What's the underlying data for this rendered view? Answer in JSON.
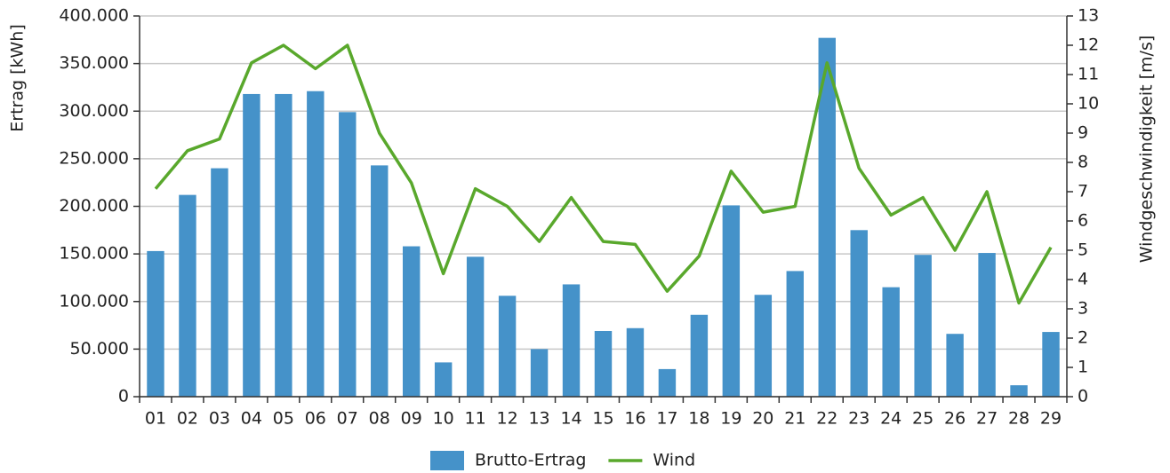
{
  "chart_data": {
    "type": "bar_line",
    "y_label": "Ertrag [kWh]",
    "y2_label": "Windgeschwindigkeit [m/s]",
    "categories": [
      "01",
      "02",
      "03",
      "04",
      "05",
      "06",
      "07",
      "08",
      "09",
      "10",
      "11",
      "12",
      "13",
      "14",
      "15",
      "16",
      "17",
      "18",
      "19",
      "20",
      "21",
      "22",
      "23",
      "24",
      "25",
      "26",
      "27",
      "28",
      "29"
    ],
    "series": [
      {
        "name": "Brutto-Ertrag",
        "type": "bar",
        "color": "#4592c9",
        "values": [
          153000,
          212000,
          240000,
          318000,
          318000,
          321000,
          299000,
          243000,
          158000,
          36000,
          147000,
          106000,
          50000,
          118000,
          69000,
          72000,
          29000,
          86000,
          201000,
          107000,
          132000,
          377000,
          175000,
          115000,
          149000,
          66000,
          151000,
          12000,
          68000
        ]
      },
      {
        "name": "Wind",
        "type": "line",
        "axis": "y2",
        "color": "#59a82c",
        "values": [
          7.1,
          8.4,
          8.8,
          11.4,
          12.0,
          11.2,
          12.0,
          9.0,
          7.3,
          4.2,
          7.1,
          6.5,
          5.3,
          6.8,
          5.3,
          5.2,
          3.6,
          4.8,
          7.7,
          6.3,
          6.5,
          11.4,
          7.8,
          6.2,
          6.8,
          5.0,
          7.0,
          3.2,
          5.1
        ]
      }
    ],
    "ylim": [
      0,
      400000
    ],
    "yticks": [
      0,
      {
        "value": 50000,
        "label": "50.000"
      },
      {
        "value": 100000,
        "label": "100.000"
      },
      {
        "value": 150000,
        "label": "150.000"
      },
      {
        "value": 200000,
        "label": "200.000"
      },
      {
        "value": 250000,
        "label": "250.000"
      },
      {
        "value": 300000,
        "label": "300.000"
      },
      {
        "value": 350000,
        "label": "350.000"
      },
      {
        "value": 400000,
        "label": "400.000"
      }
    ],
    "y2lim": [
      0,
      13
    ],
    "y2ticks": [
      0,
      1,
      2,
      3,
      4,
      5,
      6,
      7,
      8,
      9,
      10,
      11,
      12,
      13
    ],
    "grid": true,
    "legend": "bottom"
  }
}
